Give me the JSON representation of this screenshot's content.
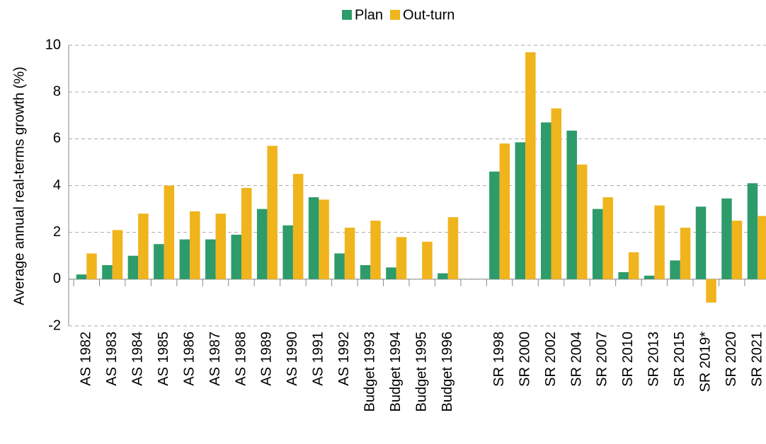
{
  "chart_data": {
    "type": "bar",
    "y_label": "Average annual real-terms growth (%)",
    "categories": [
      "AS 1982",
      "AS 1983",
      "AS 1984",
      "AS 1985",
      "AS 1986",
      "AS 1987",
      "AS 1988",
      "AS 1989",
      "AS 1990",
      "AS 1991",
      "AS 1992",
      "Budget 1993",
      "Budget 1994",
      "Budget 1995",
      "Budget 1996",
      null,
      "SR 1998",
      "SR 2000",
      "SR 2002",
      "SR 2004",
      "SR 2007",
      "SR 2010",
      "SR 2013",
      "SR 2015",
      "SR 2019*",
      "SR 2020",
      "SR 2021"
    ],
    "series": [
      {
        "name": "Plan",
        "color": "#2e9b6b",
        "values": [
          0.2,
          0.6,
          1.0,
          1.5,
          1.7,
          1.7,
          1.9,
          3.0,
          2.3,
          3.5,
          1.1,
          0.6,
          0.5,
          null,
          0.25,
          null,
          4.6,
          5.85,
          6.7,
          6.35,
          3.0,
          0.3,
          0.15,
          0.8,
          3.1,
          3.45,
          4.1
        ]
      },
      {
        "name": "Out-turn",
        "color": "#f0b41c",
        "values": [
          1.1,
          2.1,
          2.8,
          4.0,
          2.9,
          2.8,
          3.9,
          5.7,
          4.5,
          3.4,
          2.2,
          2.5,
          1.8,
          1.6,
          2.65,
          null,
          5.8,
          9.7,
          7.3,
          4.9,
          3.5,
          1.15,
          3.15,
          2.2,
          -1.0,
          2.5,
          2.7
        ]
      }
    ],
    "ylim": [
      -2,
      10
    ],
    "yticks": [
      -2,
      0,
      2,
      4,
      6,
      8,
      10
    ],
    "grid": true,
    "legend": "top"
  }
}
